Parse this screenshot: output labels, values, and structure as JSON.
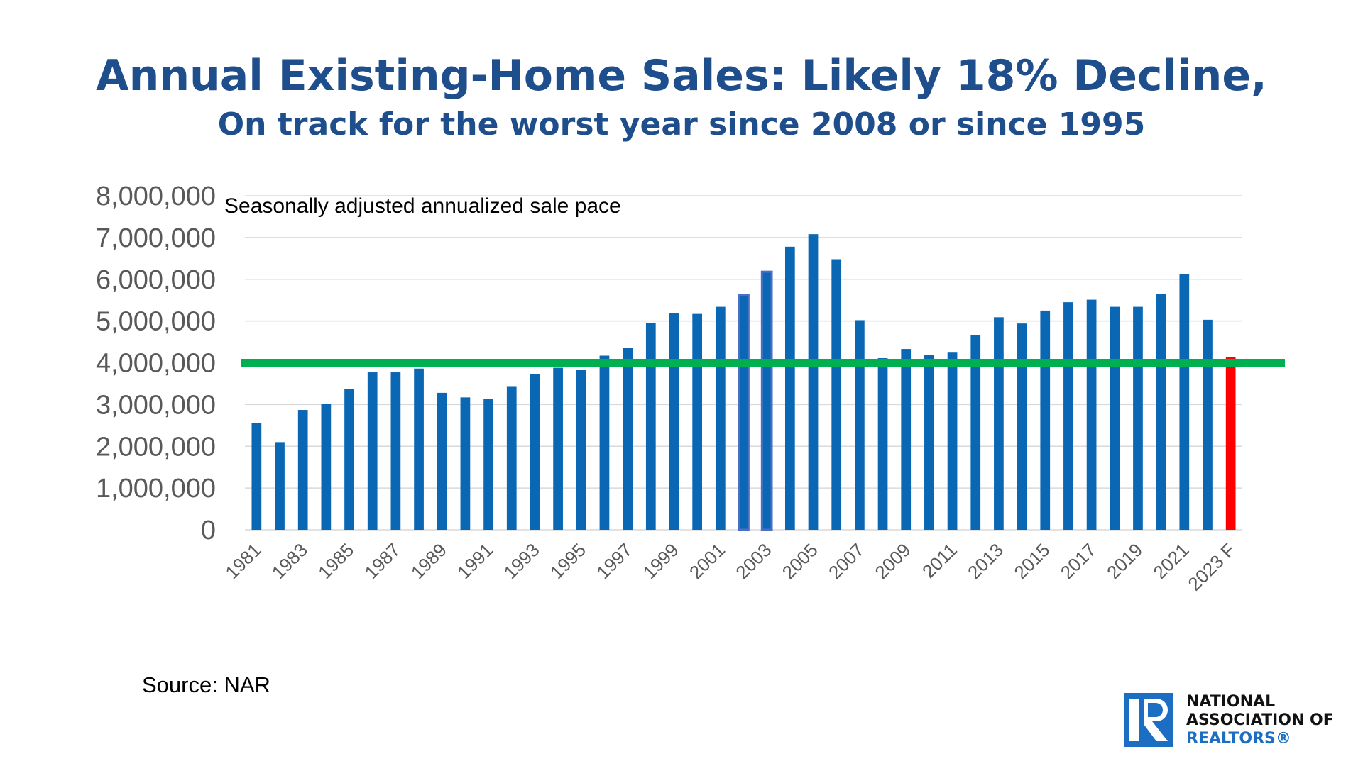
{
  "header": {
    "title": "Annual Existing-Home Sales:  Likely 18% Decline,",
    "subtitle": "On track for the worst year since 2008 or since 1995"
  },
  "footer": {
    "source": "Source: NAR",
    "logo": {
      "icon": "realtor-r-logo-icon",
      "line1": "NATIONAL",
      "line2": "ASSOCIATION OF",
      "line3": "REALTORS®"
    }
  },
  "colors": {
    "title": "#1f4e8c",
    "bar": "#0a67b4",
    "bar_highlight_outline": "#4a6fc4",
    "forecast_bar": "#ff0000",
    "reference_line": "#00b050",
    "gridline": "#d9d9d9",
    "axis_text": "#595959"
  },
  "chart_data": {
    "type": "bar",
    "title": "Annual Existing-Home Sales:  Likely 18% Decline,",
    "subtitle": "On track for the worst year since 2008 or since 1995",
    "annotation": "Seasonally adjusted annualized sale pace",
    "xlabel": "",
    "ylabel": "",
    "ylim": [
      0,
      8000000
    ],
    "yticks": [
      0,
      1000000,
      2000000,
      3000000,
      4000000,
      5000000,
      6000000,
      7000000,
      8000000
    ],
    "ytick_labels": [
      "0",
      "1,000,000",
      "2,000,000",
      "3,000,000",
      "4,000,000",
      "5,000,000",
      "6,000,000",
      "7,000,000",
      "8,000,000"
    ],
    "grid": true,
    "categories": [
      "1981",
      "1982",
      "1983",
      "1984",
      "1985",
      "1986",
      "1987",
      "1988",
      "1989",
      "1990",
      "1991",
      "1992",
      "1993",
      "1994",
      "1995",
      "1996",
      "1997",
      "1998",
      "1999",
      "2000",
      "2001",
      "2002",
      "2003",
      "2004",
      "2005",
      "2006",
      "2007",
      "2008",
      "2009",
      "2010",
      "2011",
      "2012",
      "2013",
      "2014",
      "2015",
      "2016",
      "2017",
      "2018",
      "2019",
      "2020",
      "2021",
      "2022",
      "2023 F"
    ],
    "xtick_labels_shown": [
      "1981",
      "1983",
      "1985",
      "1987",
      "1989",
      "1991",
      "1993",
      "1995",
      "1997",
      "1999",
      "2001",
      "2003",
      "2005",
      "2007",
      "2009",
      "2011",
      "2013",
      "2015",
      "2017",
      "2019",
      "2021",
      "2023 F"
    ],
    "series": [
      {
        "name": "Existing-home sales",
        "values": [
          2560000,
          2100000,
          2870000,
          3020000,
          3370000,
          3770000,
          3770000,
          3860000,
          3280000,
          3170000,
          3130000,
          3440000,
          3730000,
          3880000,
          3830000,
          4170000,
          4360000,
          4960000,
          5180000,
          5170000,
          5340000,
          5630000,
          6180000,
          6780000,
          7080000,
          6480000,
          5020000,
          4110000,
          4330000,
          4190000,
          4260000,
          4660000,
          5090000,
          4940000,
          5250000,
          5450000,
          5510000,
          5340000,
          5340000,
          5640000,
          6120000,
          5030000,
          4140000
        ]
      }
    ],
    "highlighted_categories": [
      "2002",
      "2003"
    ],
    "forecast_category": "2023 F",
    "reference_line": {
      "value": 4000000,
      "color": "green"
    },
    "legend": "none"
  }
}
